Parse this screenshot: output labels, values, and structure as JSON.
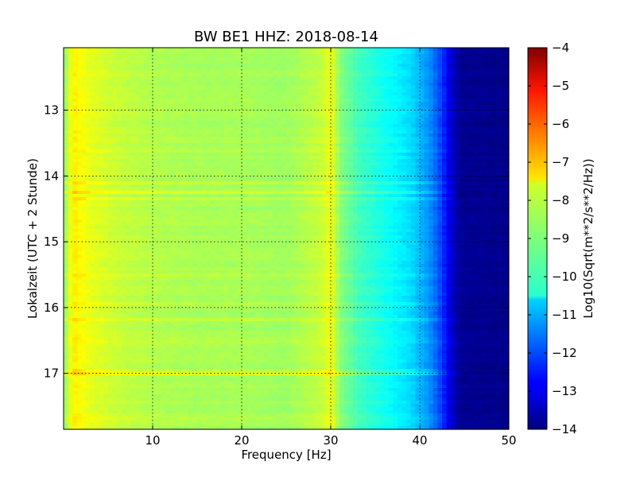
{
  "chart_data": {
    "type": "heatmap",
    "title": "BW BE1 HHZ: 2018-08-14",
    "xlabel": "Frequency [Hz]",
    "ylabel": "Lokalzeit (UTC + 2 Stunde)",
    "xlim": [
      0,
      50
    ],
    "ylim": [
      12.05,
      17.85
    ],
    "y_inverted": true,
    "grid": true,
    "x_ticks": [
      10,
      20,
      30,
      40,
      50
    ],
    "y_ticks": [
      13,
      14,
      15,
      16,
      17
    ],
    "colormap": "jet",
    "colorbar": {
      "label": "Log10(Sqrt(m**2/s**2/Hz))",
      "range": [
        -14,
        -4
      ],
      "ticks": [
        -4,
        -5,
        -6,
        -7,
        -8,
        -9,
        -10,
        -11,
        -12,
        -13,
        -14
      ]
    },
    "spectrum_profile": [
      {
        "freq": 0.3,
        "value": -8.6
      },
      {
        "freq": 1,
        "value": -7.6
      },
      {
        "freq": 3,
        "value": -8.0
      },
      {
        "freq": 6,
        "value": -8.3
      },
      {
        "freq": 10,
        "value": -8.5
      },
      {
        "freq": 15,
        "value": -8.6
      },
      {
        "freq": 20,
        "value": -8.6
      },
      {
        "freq": 25,
        "value": -8.7
      },
      {
        "freq": 29,
        "value": -8.3
      },
      {
        "freq": 30,
        "value": -7.9
      },
      {
        "freq": 31,
        "value": -8.9
      },
      {
        "freq": 33,
        "value": -9.6
      },
      {
        "freq": 36,
        "value": -10.1
      },
      {
        "freq": 39,
        "value": -10.6
      },
      {
        "freq": 41,
        "value": -11.3
      },
      {
        "freq": 42.5,
        "value": -12.2
      },
      {
        "freq": 43.5,
        "value": -13.2
      },
      {
        "freq": 44.5,
        "value": -13.8
      },
      {
        "freq": 50,
        "value": -13.9
      }
    ],
    "time_bands": [
      {
        "time": 13.45,
        "offset": 0.4
      },
      {
        "time": 13.6,
        "offset": 0.3
      },
      {
        "time": 14.1,
        "offset": 0.3
      },
      {
        "time": 14.25,
        "offset": 0.5
      },
      {
        "time": 14.35,
        "offset": 0.3
      },
      {
        "time": 15.5,
        "offset": 0.3
      },
      {
        "time": 15.95,
        "offset": 0.3
      },
      {
        "time": 16.2,
        "offset": 0.5
      },
      {
        "time": 16.5,
        "offset": 0.3
      },
      {
        "time": 16.95,
        "offset": 0.4
      },
      {
        "time": 17.0,
        "offset": 0.6
      },
      {
        "time": 17.7,
        "offset": 0.3
      }
    ]
  }
}
